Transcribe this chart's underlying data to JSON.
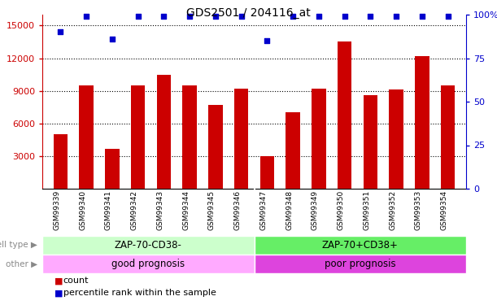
{
  "title": "GDS2501 / 204116_at",
  "samples": [
    "GSM99339",
    "GSM99340",
    "GSM99341",
    "GSM99342",
    "GSM99343",
    "GSM99344",
    "GSM99345",
    "GSM99346",
    "GSM99347",
    "GSM99348",
    "GSM99349",
    "GSM99350",
    "GSM99351",
    "GSM99352",
    "GSM99353",
    "GSM99354"
  ],
  "counts": [
    5000,
    9500,
    3700,
    9500,
    10500,
    9500,
    7700,
    9200,
    3000,
    7000,
    9200,
    13500,
    8600,
    9100,
    12200,
    9500
  ],
  "percentile_ranks": [
    90,
    99,
    86,
    99,
    99,
    99,
    99,
    99,
    85,
    99,
    99,
    99,
    99,
    99,
    99,
    99
  ],
  "cell_type_labels": [
    "ZAP-70-CD38-",
    "ZAP-70+CD38+"
  ],
  "cell_type_split": 8,
  "other_labels": [
    "good prognosis",
    "poor prognosis"
  ],
  "bar_color": "#cc0000",
  "dot_color": "#0000cc",
  "ylim_left": [
    0,
    16000
  ],
  "ylim_right": [
    0,
    100
  ],
  "yticks_left": [
    3000,
    6000,
    9000,
    12000,
    15000
  ],
  "yticks_right": [
    0,
    25,
    50,
    75,
    100
  ],
  "ytick_labels_right": [
    "0",
    "25",
    "50",
    "75",
    "100%"
  ],
  "ytick_labels_left": [
    "3000",
    "6000",
    "9000",
    "12000",
    "15000"
  ],
  "cell_type_color_left": "#ccffcc",
  "cell_type_color_right": "#66ee66",
  "other_color_left": "#ffaaff",
  "other_color_right": "#dd44dd",
  "bg_color": "#ffffff",
  "axis_color_left": "#cc0000",
  "axis_color_right": "#0000cc",
  "tick_area_bg": "#cccccc",
  "label_color": "#888888",
  "grid_color": "#000000"
}
